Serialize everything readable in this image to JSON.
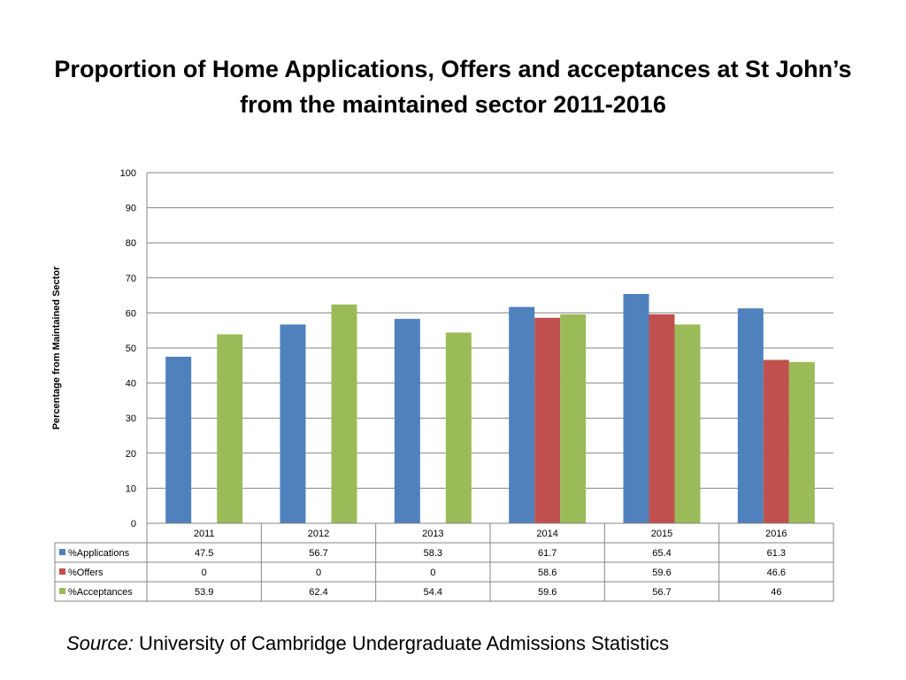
{
  "slide": {
    "title": "Proportion of Home Applications, Offers and acceptances at St John’s from the maintained sector 2011-2016",
    "source_label": "Source:",
    "source_text": "University of Cambridge Undergraduate Admissions Statistics"
  },
  "chart_data": {
    "type": "bar",
    "title": "",
    "xlabel": "",
    "ylabel": "Percentage from Maintained Sector",
    "ylim": [
      0,
      100
    ],
    "ytick_step": 10,
    "grid": true,
    "legend": "data-table",
    "categories": [
      "2011",
      "2012",
      "2013",
      "2014",
      "2015",
      "2016"
    ],
    "series": [
      {
        "name": "%Applications",
        "color": "#4F81BD",
        "values": [
          47.5,
          56.7,
          58.3,
          61.7,
          65.4,
          61.3
        ]
      },
      {
        "name": "%Offers",
        "color": "#C0504D",
        "values": [
          0,
          0,
          0,
          58.6,
          59.6,
          46.6
        ]
      },
      {
        "name": "%Acceptances",
        "color": "#9BBB59",
        "values": [
          53.9,
          62.4,
          54.4,
          59.6,
          56.7,
          46
        ]
      }
    ]
  }
}
